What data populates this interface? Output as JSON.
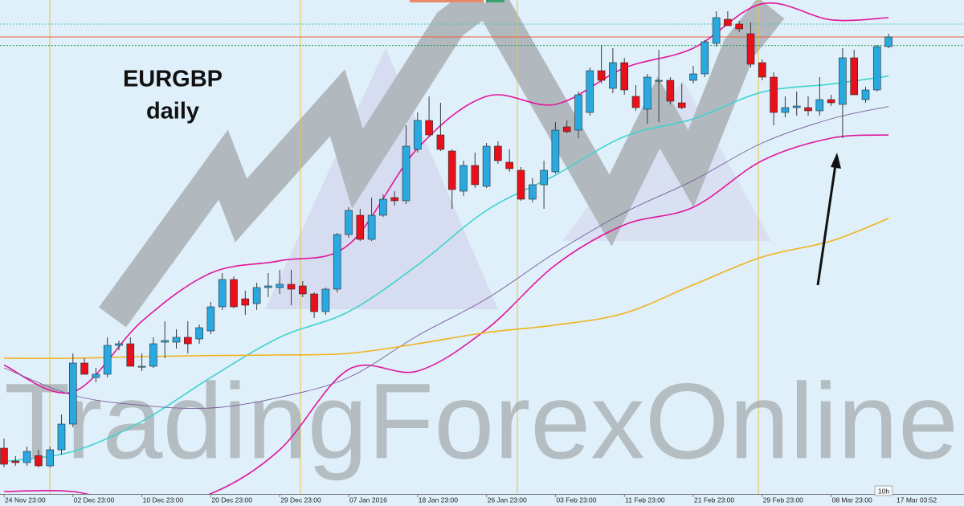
{
  "chart_data": {
    "type": "candlestick",
    "title": "EURGBP",
    "subtitle": "daily",
    "watermark": "TradingForexOnline",
    "cursor_time": "17 Mar 03:52",
    "timeframe_label": "10h",
    "ylim": [
      0.69775,
      0.79
    ],
    "up_color": "#29a9e0",
    "down_color": "#e8101b",
    "categories": [
      "24 Nov 23:00",
      null,
      null,
      null,
      null,
      null,
      "02 Dec 23:00",
      null,
      null,
      null,
      null,
      null,
      "10 Dec 23:00",
      null,
      null,
      null,
      null,
      null,
      "20 Dec 23:00",
      null,
      null,
      null,
      null,
      null,
      "29 Dec 23:00",
      null,
      null,
      null,
      null,
      null,
      "07 Jan 2016",
      null,
      null,
      null,
      null,
      null,
      "18 Jan 23:00",
      null,
      null,
      null,
      null,
      null,
      "26 Jan 23:00",
      null,
      null,
      null,
      null,
      null,
      "03 Feb 23:00",
      null,
      null,
      null,
      null,
      null,
      "11 Feb 23:00",
      null,
      null,
      null,
      null,
      null,
      "21 Feb 23:00",
      null,
      null,
      null,
      null,
      null,
      "29 Feb 23:00",
      null,
      null,
      null,
      null,
      null,
      "08 Mar 23:00",
      null,
      null,
      null,
      null,
      null
    ],
    "open": [
      0.7063,
      0.7039,
      0.7036,
      0.7049,
      0.703,
      0.706,
      0.7108,
      0.7222,
      0.7195,
      0.7201,
      0.7255,
      0.7258,
      0.7216,
      0.7216,
      0.7261,
      0.7261,
      0.727,
      0.7267,
      0.7282,
      0.7327,
      0.7378,
      0.7342,
      0.7333,
      0.7363,
      0.7363,
      0.7369,
      0.7366,
      0.7351,
      0.7318,
      0.736,
      0.7462,
      0.7498,
      0.7453,
      0.7498,
      0.7531,
      0.7525,
      0.7621,
      0.7675,
      0.7648,
      0.7618,
      0.7543,
      0.7591,
      0.7552,
      0.7627,
      0.7597,
      0.7582,
      0.7528,
      0.7555,
      0.7579,
      0.7663,
      0.7657,
      0.769,
      0.7768,
      0.7735,
      0.7783,
      0.772,
      0.7696,
      0.775,
      0.775,
      0.7708,
      0.775,
      0.7762,
      0.7819,
      0.7864,
      0.7855,
      0.7837,
      0.7783,
      0.7756,
      0.769,
      0.7699,
      0.7699,
      0.7693,
      0.7714,
      0.7705,
      0.7792,
      0.7714,
      0.7732,
      0.7813
    ],
    "high": [
      0.7081,
      0.7048,
      0.7066,
      0.706,
      0.7066,
      0.7126,
      0.724,
      0.7231,
      0.7213,
      0.727,
      0.7264,
      0.727,
      0.724,
      0.727,
      0.73,
      0.7285,
      0.73,
      0.7294,
      0.7336,
      0.739,
      0.7384,
      0.7357,
      0.7372,
      0.739,
      0.7396,
      0.7396,
      0.7375,
      0.7354,
      0.7363,
      0.7465,
      0.7513,
      0.751,
      0.7531,
      0.7537,
      0.7543,
      0.7666,
      0.769,
      0.772,
      0.7708,
      0.7621,
      0.76,
      0.7615,
      0.7633,
      0.7636,
      0.7621,
      0.7588,
      0.7567,
      0.76,
      0.7672,
      0.7675,
      0.7729,
      0.7774,
      0.7816,
      0.781,
      0.7792,
      0.7741,
      0.7762,
      0.7807,
      0.7756,
      0.7744,
      0.7777,
      0.7825,
      0.7879,
      0.7879,
      0.7861,
      0.7858,
      0.7789,
      0.7765,
      0.772,
      0.7729,
      0.772,
      0.7756,
      0.7723,
      0.781,
      0.7807,
      0.7738,
      0.7816,
      0.7837
    ],
    "low": [
      0.7027,
      0.703,
      0.703,
      0.7027,
      0.7027,
      0.7051,
      0.7102,
      0.7201,
      0.7186,
      0.7195,
      0.7246,
      0.7216,
      0.7207,
      0.7213,
      0.7231,
      0.7249,
      0.724,
      0.7258,
      0.7276,
      0.7321,
      0.7324,
      0.7312,
      0.7321,
      0.7345,
      0.7351,
      0.733,
      0.7345,
      0.7306,
      0.7312,
      0.7354,
      0.7456,
      0.745,
      0.745,
      0.7495,
      0.7516,
      0.7519,
      0.7615,
      0.7645,
      0.7618,
      0.751,
      0.7534,
      0.7549,
      0.7549,
      0.7594,
      0.7579,
      0.7525,
      0.7522,
      0.751,
      0.7576,
      0.7651,
      0.7642,
      0.7684,
      0.7744,
      0.7726,
      0.7723,
      0.7693,
      0.7669,
      0.7672,
      0.7705,
      0.7696,
      0.7744,
      0.7756,
      0.7813,
      0.7852,
      0.784,
      0.7774,
      0.775,
      0.7666,
      0.7681,
      0.7684,
      0.7684,
      0.7684,
      0.7702,
      0.7642,
      0.7723,
      0.7708,
      0.7729,
      0.781
    ],
    "close": [
      0.7033,
      0.7036,
      0.7057,
      0.703,
      0.706,
      0.7108,
      0.7222,
      0.7201,
      0.7201,
      0.7255,
      0.7258,
      0.7216,
      0.7216,
      0.7258,
      0.7264,
      0.727,
      0.7258,
      0.7288,
      0.7327,
      0.7378,
      0.7327,
      0.733,
      0.7363,
      0.7366,
      0.7369,
      0.736,
      0.7351,
      0.7318,
      0.736,
      0.7462,
      0.7507,
      0.7453,
      0.7498,
      0.7528,
      0.7525,
      0.7627,
      0.7675,
      0.7648,
      0.7621,
      0.7546,
      0.7591,
      0.7555,
      0.7627,
      0.76,
      0.7585,
      0.7528,
      0.7555,
      0.7582,
      0.7657,
      0.7654,
      0.7723,
      0.7768,
      0.775,
      0.7783,
      0.7732,
      0.7699,
      0.7756,
      0.775,
      0.7711,
      0.7699,
      0.7762,
      0.7822,
      0.7867,
      0.7852,
      0.7846,
      0.778,
      0.7756,
      0.769,
      0.7699,
      0.7702,
      0.7693,
      0.7714,
      0.7708,
      0.7792,
      0.7723,
      0.7732,
      0.7813,
      0.7831
    ],
    "overlays": [
      {
        "color": "#e0169c",
        "x": [
          0,
          6,
          12,
          18,
          24,
          30,
          36,
          42,
          48,
          54,
          60,
          66,
          72,
          77
        ],
        "values": [
          0.7218,
          0.7168,
          0.73,
          0.739,
          0.7413,
          0.7443,
          0.7623,
          0.772,
          0.7705,
          0.7773,
          0.781,
          0.7893,
          0.7863,
          0.7867
        ]
      },
      {
        "color": "#e0169c",
        "x": [
          0,
          6,
          12,
          18,
          24,
          30,
          36,
          42,
          48,
          54,
          60,
          66,
          72,
          77
        ],
        "values": [
          0.6982,
          0.6982,
          0.6955,
          0.6978,
          0.706,
          0.721,
          0.7207,
          0.7285,
          0.7405,
          0.748,
          0.7513,
          0.76,
          0.7642,
          0.7648
        ]
      },
      {
        "color": "#3fd3d0",
        "x": [
          0,
          6,
          12,
          18,
          24,
          30,
          36,
          42,
          48,
          54,
          60,
          66,
          72,
          77
        ],
        "values": [
          0.7038,
          0.7057,
          0.7113,
          0.7195,
          0.727,
          0.7318,
          0.7405,
          0.7507,
          0.7573,
          0.7645,
          0.7678,
          0.7728,
          0.7743,
          0.7758
        ]
      },
      {
        "color": "#7a5a9a",
        "x": [
          0,
          6,
          12,
          18,
          24,
          30,
          36,
          42,
          48,
          54,
          60,
          66,
          72,
          77
        ],
        "values": [
          0.7213,
          0.7162,
          0.7143,
          0.7138,
          0.7158,
          0.7195,
          0.7273,
          0.7342,
          0.7428,
          0.7503,
          0.7563,
          0.7633,
          0.7678,
          0.7701
        ]
      },
      {
        "color": "#f2b21a",
        "x": [
          0,
          6,
          12,
          18,
          24,
          30,
          36,
          42,
          48,
          54,
          60,
          66,
          72,
          77
        ],
        "values": [
          0.7231,
          0.7231,
          0.7234,
          0.7236,
          0.7237,
          0.724,
          0.7258,
          0.7279,
          0.7293,
          0.7315,
          0.7368,
          0.742,
          0.745,
          0.7492
        ]
      }
    ],
    "price_lines": [
      {
        "value": 0.7855,
        "color": "#4fc0c8",
        "style": "dotted"
      },
      {
        "value": 0.7831,
        "color": "#e8603c",
        "style": "solid"
      },
      {
        "value": 0.7815,
        "color": "#1e9a50",
        "style": "dotted"
      }
    ]
  }
}
